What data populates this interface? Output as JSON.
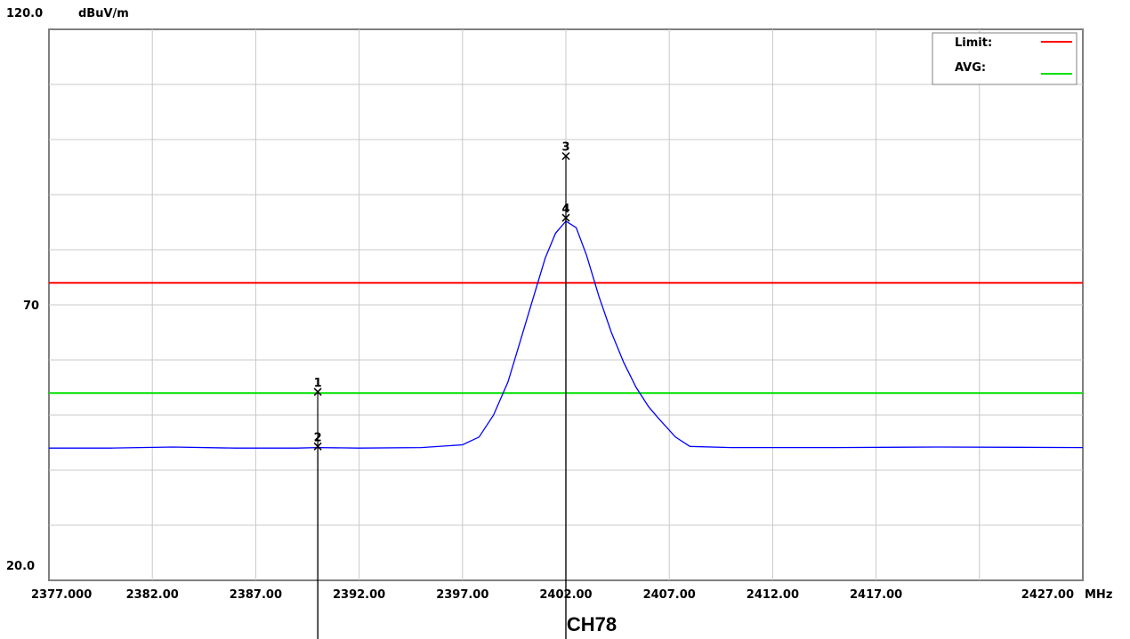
{
  "chart_data": {
    "type": "line",
    "title": "CH78",
    "y_unit_label": "dBuV/m",
    "x_unit_label": "MHz",
    "xlim": [
      2377.0,
      2427.0
    ],
    "ylim": [
      20.0,
      120.0
    ],
    "y_tick_labels": [
      "120.0",
      "70",
      "20.0"
    ],
    "x_tick_labels": [
      "2377.000",
      "2382.00",
      "2387.00",
      "2392.00",
      "2397.00",
      "2402.00",
      "2407.00",
      "2412.00",
      "2417.00",
      "2427.00"
    ],
    "grid": true,
    "legend": {
      "placement": "top-right",
      "entries": [
        {
          "name": "Limit:",
          "color": "#ff0000"
        },
        {
          "name": "AVG:",
          "color": "#00e000"
        }
      ]
    },
    "limit_lines": [
      {
        "name": "Limit",
        "y": 74.0,
        "color": "#ff0000"
      },
      {
        "name": "AVG",
        "y": 54.0,
        "color": "#00e000"
      }
    ],
    "series": [
      {
        "color": "#0000ff",
        "x": [
          2377.0,
          2380.0,
          2383.0,
          2386.0,
          2389.0,
          2390.0,
          2392.0,
          2395.0,
          2397.0,
          2397.8,
          2398.5,
          2399.2,
          2399.8,
          2400.4,
          2401.0,
          2401.5,
          2402.0,
          2402.5,
          2403.0,
          2403.6,
          2404.2,
          2404.8,
          2405.4,
          2406.0,
          2406.5,
          2407.3,
          2408.0,
          2410.0,
          2415.0,
          2420.0,
          2427.0
        ],
        "y": [
          44.0,
          44.0,
          44.2,
          44.0,
          44.0,
          44.1,
          44.0,
          44.1,
          44.6,
          46.0,
          50.0,
          56.0,
          63.5,
          71.0,
          78.5,
          83.0,
          85.2,
          84.0,
          79.0,
          71.5,
          65.0,
          59.5,
          55.0,
          51.5,
          49.3,
          46.0,
          44.3,
          44.1,
          44.1,
          44.2,
          44.1
        ]
      }
    ],
    "markers": [
      {
        "label": "1",
        "x": 2390.0,
        "y": 54.2
      },
      {
        "label": "2",
        "x": 2390.0,
        "y": 44.3
      },
      {
        "label": "3",
        "x": 2402.0,
        "y": 97.0
      },
      {
        "label": "4",
        "x": 2402.0,
        "y": 85.8
      }
    ]
  }
}
